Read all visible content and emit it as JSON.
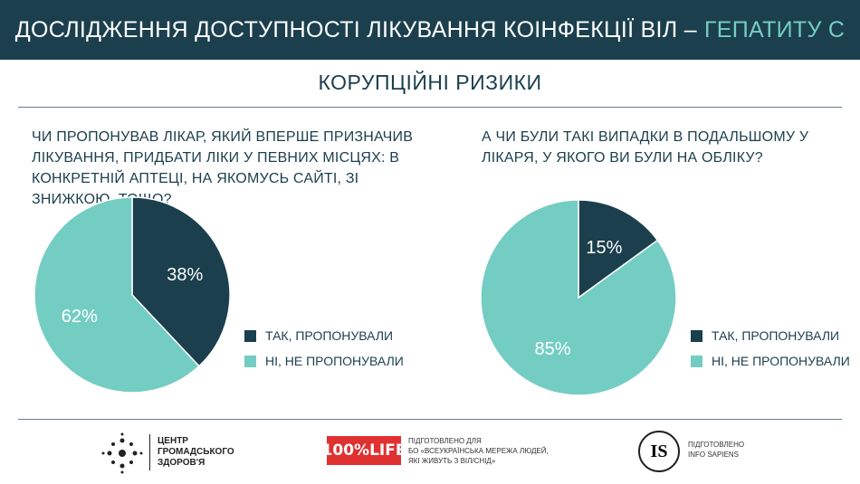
{
  "header": {
    "title_main": "ДОСЛІДЖЕННЯ ДОСТУПНОСТІ ЛІКУВАННЯ КОІНФЕКЦІЇ ВІЛ –",
    "title_accent": "ГЕПАТИТУ С"
  },
  "section_title": "КОРУПЦІЙНІ РИЗИКИ",
  "colors": {
    "dark": "#1b3f4d",
    "light": "#74cdc2",
    "brand_red": "#e03131"
  },
  "chart_data": [
    {
      "type": "pie",
      "title": "ЧИ ПРОПОНУВАВ ЛІКАР, ЯКИЙ ВПЕРШЕ ПРИЗНАЧИВ ЛІКУВАННЯ, ПРИДБАТИ ЛІКИ У ПЕВНИХ МІСЦЯХ: В КОНКРЕТНІЙ АПТЕЦІ, НА ЯКОМУСЬ САЙТІ, ЗІ ЗНИЖКОЮ, ТОЩО?",
      "labels": [
        "ТАК, ПРОПОНУВАЛИ",
        "НІ, НЕ ПРОПОНУВАЛИ"
      ],
      "values": [
        38,
        62
      ],
      "data_labels": [
        "38%",
        "62%"
      ],
      "colors": [
        "#1b3f4d",
        "#74cdc2"
      ],
      "legend_position": "right"
    },
    {
      "type": "pie",
      "title": "А ЧИ БУЛИ ТАКІ ВИПАДКИ В ПОДАЛЬШОМУ У ЛІКАРЯ, У ЯКОГО ВИ БУЛИ НА ОБЛІКУ?",
      "labels": [
        "ТАК, ПРОПОНУВАЛИ",
        "НІ, НЕ ПРОПОНУВАЛИ"
      ],
      "values": [
        15,
        85
      ],
      "data_labels": [
        "15%",
        "85%"
      ],
      "colors": [
        "#1b3f4d",
        "#74cdc2"
      ],
      "legend_position": "right"
    }
  ],
  "footer": {
    "org1_line1": "ЦЕНТР",
    "org1_line2": "ГРОМАДСЬКОГО",
    "org1_line3": "ЗДОРОВ'Я",
    "org2_logo": "100%LIFE",
    "org2_line1": "ПІДГОТОВЛЕНО ДЛЯ",
    "org2_line2": "БО «ВСЕУКРАЇНСЬКА МЕРЕЖА ЛЮДЕЙ,",
    "org2_line3": "ЯКІ ЖИВУТЬ З ВІЛ/СНІД»",
    "org3_logo": "IS",
    "org3_line1": "ПІДГОТОВЛЕНО",
    "org3_line2": "INFO SAPIENS"
  }
}
